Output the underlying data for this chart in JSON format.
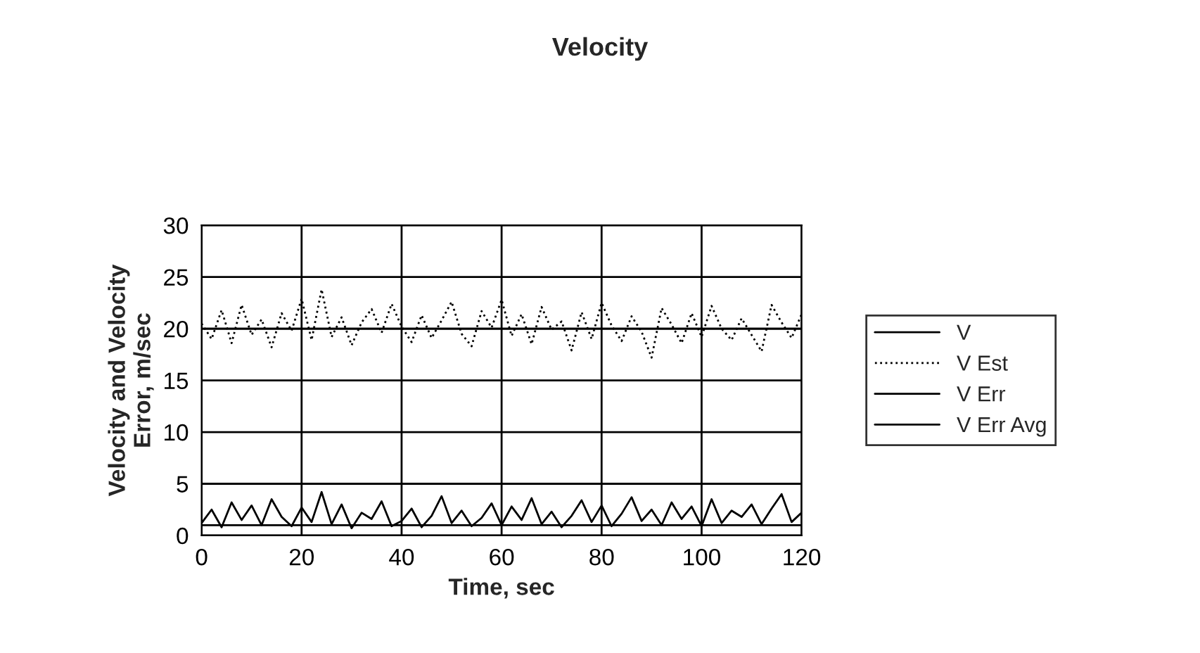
{
  "chart_data": {
    "type": "line",
    "title": "Velocity",
    "xlabel": "Time, sec",
    "ylabel": "Velocity and Velocity\nError, m/sec",
    "xlim": [
      0,
      120
    ],
    "ylim": [
      0,
      30
    ],
    "xticks": [
      0,
      20,
      40,
      60,
      80,
      100,
      120
    ],
    "yticks": [
      0,
      5,
      10,
      15,
      20,
      25,
      30
    ],
    "grid": true,
    "legend": "right",
    "marker": "none",
    "series": [
      {
        "name": "V",
        "color": "#000000",
        "line_style": "solid",
        "x": [
          0,
          120
        ],
        "values": [
          20,
          20
        ]
      },
      {
        "name": "V Est",
        "color": "#000000",
        "line_style": "dotted",
        "x": [
          0,
          2,
          4,
          6,
          8,
          10,
          12,
          14,
          16,
          18,
          20,
          22,
          24,
          26,
          28,
          30,
          32,
          34,
          36,
          38,
          40,
          42,
          44,
          46,
          48,
          50,
          52,
          54,
          56,
          58,
          60,
          62,
          64,
          66,
          68,
          70,
          72,
          74,
          76,
          78,
          80,
          82,
          84,
          86,
          88,
          90,
          92,
          94,
          96,
          98,
          100,
          102,
          104,
          106,
          108,
          110,
          112,
          114,
          116,
          118,
          120
        ],
        "values": [
          20.5,
          19,
          21.8,
          18.6,
          22.3,
          19.4,
          20.9,
          18.2,
          21.5,
          19.8,
          22.9,
          18.9,
          23.8,
          19.2,
          21.1,
          18.4,
          20.6,
          21.9,
          19.6,
          22.4,
          20.2,
          18.7,
          21.3,
          19.1,
          20.8,
          22.6,
          19.5,
          18.3,
          21.7,
          20.1,
          22.8,
          19.3,
          21.4,
          18.5,
          22.1,
          19.9,
          20.7,
          17.9,
          21.6,
          19.0,
          22.5,
          20.3,
          18.8,
          21.2,
          19.7,
          17.2,
          22.0,
          20.4,
          18.6,
          21.5,
          19.2,
          22.2,
          20.0,
          18.9,
          21.0,
          19.4,
          17.8,
          22.3,
          20.6,
          19.1,
          21.4
        ]
      },
      {
        "name": "V Err",
        "color": "#000000",
        "line_style": "solid",
        "x": [
          0,
          2,
          4,
          6,
          8,
          10,
          12,
          14,
          16,
          18,
          20,
          22,
          24,
          26,
          28,
          30,
          32,
          34,
          36,
          38,
          40,
          42,
          44,
          46,
          48,
          50,
          52,
          54,
          56,
          58,
          60,
          62,
          64,
          66,
          68,
          70,
          72,
          74,
          76,
          78,
          80,
          82,
          84,
          86,
          88,
          90,
          92,
          94,
          96,
          98,
          100,
          102,
          104,
          106,
          108,
          110,
          112,
          114,
          116,
          118,
          120
        ],
        "values": [
          1.2,
          2.5,
          0.8,
          3.2,
          1.5,
          2.9,
          1.0,
          3.5,
          1.8,
          0.9,
          2.7,
          1.3,
          4.2,
          1.1,
          3.0,
          0.7,
          2.2,
          1.6,
          3.3,
          0.9,
          1.4,
          2.6,
          0.8,
          1.9,
          3.8,
          1.2,
          2.4,
          0.9,
          1.7,
          3.1,
          1.0,
          2.8,
          1.5,
          3.6,
          1.1,
          2.3,
          0.8,
          1.9,
          3.4,
          1.3,
          2.9,
          0.9,
          2.1,
          3.7,
          1.4,
          2.5,
          1.0,
          3.2,
          1.6,
          2.8,
          0.9,
          3.5,
          1.2,
          2.4,
          1.8,
          3.0,
          1.1,
          2.6,
          4.0,
          1.3,
          2.2
        ]
      },
      {
        "name": "V Err Avg",
        "color": "#000000",
        "line_style": "solid",
        "x": [
          0,
          120
        ],
        "values": [
          1,
          1
        ]
      }
    ]
  }
}
